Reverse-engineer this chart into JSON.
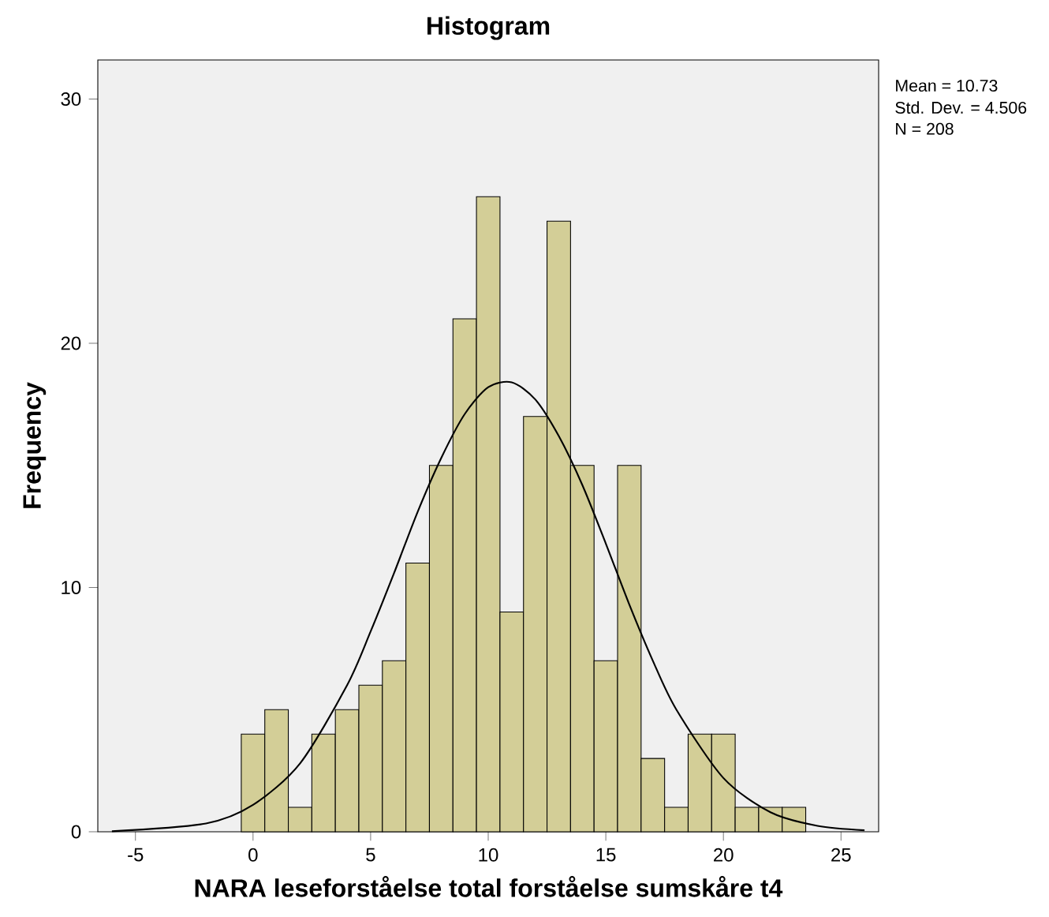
{
  "chart_data": {
    "type": "histogram",
    "title": "Histogram",
    "xlabel": "NARA leseforståelse total forståelse sumskåre t4",
    "ylabel": "Frequency",
    "bins": [
      -0.5,
      0.5,
      1.5,
      2.5,
      3.5,
      4.5,
      5.5,
      6.5,
      7.5,
      8.5,
      9.5,
      10.5,
      11.5,
      12.5,
      13.5,
      14.5,
      15.5,
      16.5,
      17.5,
      18.5,
      19.5,
      20.5,
      21.5,
      22.5,
      23.5
    ],
    "values": [
      4,
      5,
      1,
      4,
      5,
      6,
      7,
      11,
      15,
      21,
      26,
      9,
      17,
      25,
      15,
      7,
      15,
      3,
      1,
      4,
      4,
      1,
      1,
      1
    ],
    "color": "#d3ce97",
    "series": [
      {
        "type": "line",
        "color": "#000000",
        "x": [
          -6,
          -2,
          0,
          2,
          4,
          5,
          6,
          7,
          8,
          9,
          10,
          11,
          12,
          13,
          14,
          15,
          16,
          17,
          18,
          20,
          22,
          24,
          26
        ],
        "values": [
          0.02,
          0.34,
          1.1,
          2.8,
          6.0,
          8.2,
          10.6,
          13.1,
          15.3,
          17.1,
          18.2,
          18.4,
          17.7,
          16.2,
          14.2,
          11.8,
          9.3,
          7.0,
          5.0,
          2.2,
          0.8,
          0.24,
          0.06
        ]
      }
    ],
    "xlim": [
      -6.6,
      26.6
    ],
    "ylim": [
      0,
      31.6
    ],
    "xticks": [
      -5,
      0,
      5,
      10,
      15,
      20,
      25
    ],
    "yticks": [
      0,
      10,
      20,
      30
    ],
    "annotations": [
      "Mean = 10.73",
      "Std. Dev. = 4.506",
      "N = 208"
    ]
  }
}
